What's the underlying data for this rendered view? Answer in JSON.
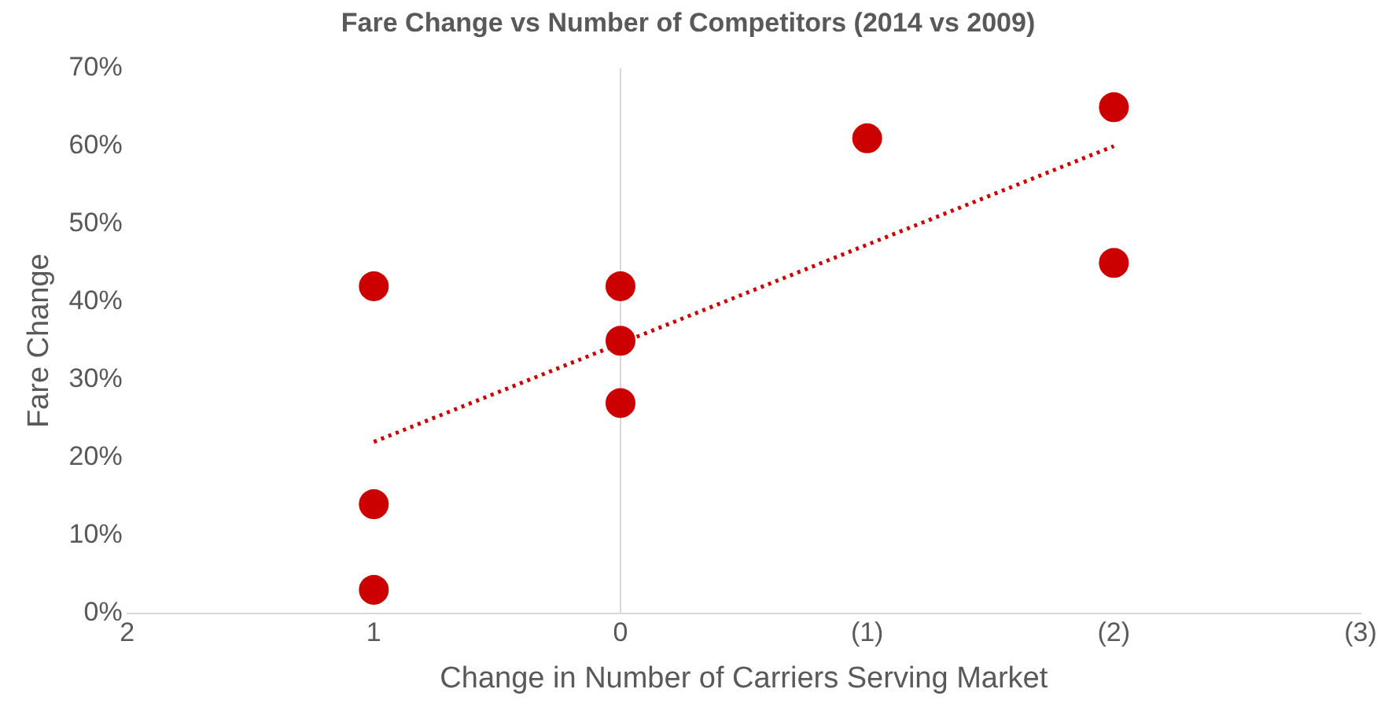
{
  "chart_data": {
    "type": "scatter",
    "title": "Fare Change vs Number of Competitors (2014 vs 2009)",
    "xlabel": "Change in Number of Carriers Serving Market",
    "ylabel": "Fare Change",
    "xlim": [
      2,
      -3
    ],
    "xticks": [
      2,
      1,
      0,
      {
        "value": -1,
        "label": "(1)"
      },
      {
        "value": -2,
        "label": "(2)"
      },
      {
        "value": -3,
        "label": "(3)"
      }
    ],
    "ylim": [
      0,
      70
    ],
    "yticks": [
      {
        "value": 0,
        "label": "0%"
      },
      {
        "value": 10,
        "label": "10%"
      },
      {
        "value": 20,
        "label": "20%"
      },
      {
        "value": 30,
        "label": "30%"
      },
      {
        "value": 40,
        "label": "40%"
      },
      {
        "value": 50,
        "label": "50%"
      },
      {
        "value": 60,
        "label": "60%"
      },
      {
        "value": 70,
        "label": "70%"
      }
    ],
    "grid": false,
    "legend": false,
    "marker": "circle",
    "ref_lines": [
      {
        "axis": "x",
        "value": 0,
        "color": "#d9d9d9"
      }
    ],
    "series": [
      {
        "type": "scatter",
        "color": "#cc0000",
        "x": [
          1,
          1,
          1,
          0,
          0,
          0,
          -1,
          -2,
          -2
        ],
        "values": [
          42,
          14,
          3,
          42,
          35,
          27,
          61,
          65,
          45
        ]
      },
      {
        "type": "line",
        "color": "#cc0000",
        "line_style": "dotted",
        "marker": "none",
        "x": [
          1,
          -2
        ],
        "values": [
          22,
          60
        ]
      }
    ]
  }
}
